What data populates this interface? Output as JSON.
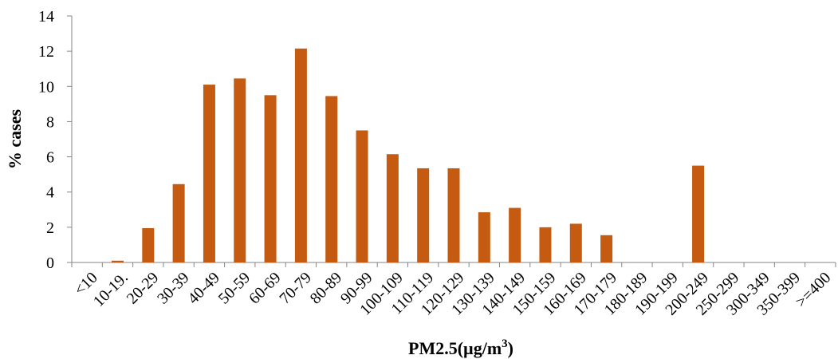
{
  "chart_data": {
    "type": "bar",
    "xlabel": "PM2.5(µg/m",
    "xlabel_superscript": "3",
    "xlabel_suffix": ")",
    "ylabel": "% cases",
    "ylim": [
      0,
      14
    ],
    "yticks": [
      0,
      2,
      4,
      6,
      8,
      10,
      12,
      14
    ],
    "grid": false,
    "bar_color": "#C55A11",
    "categories": [
      "<10",
      "10-19.",
      "20-29",
      "30-39",
      "40-49",
      "50-59",
      "60-69",
      "70-79",
      "80-89",
      "90-99",
      "100-109",
      "110-119",
      "120-129",
      "130-139",
      "140-149",
      "150-159",
      "160-169",
      "170-179",
      "180-189",
      "190-199",
      "200-249",
      "250-299",
      "300-349",
      "350-399",
      ">=400"
    ],
    "values": [
      0,
      0.1,
      1.95,
      4.45,
      10.1,
      10.45,
      9.5,
      12.15,
      9.45,
      7.5,
      6.15,
      5.35,
      5.35,
      2.85,
      3.1,
      2.0,
      2.2,
      1.55,
      0,
      0,
      5.5,
      0,
      0,
      0,
      0
    ]
  }
}
